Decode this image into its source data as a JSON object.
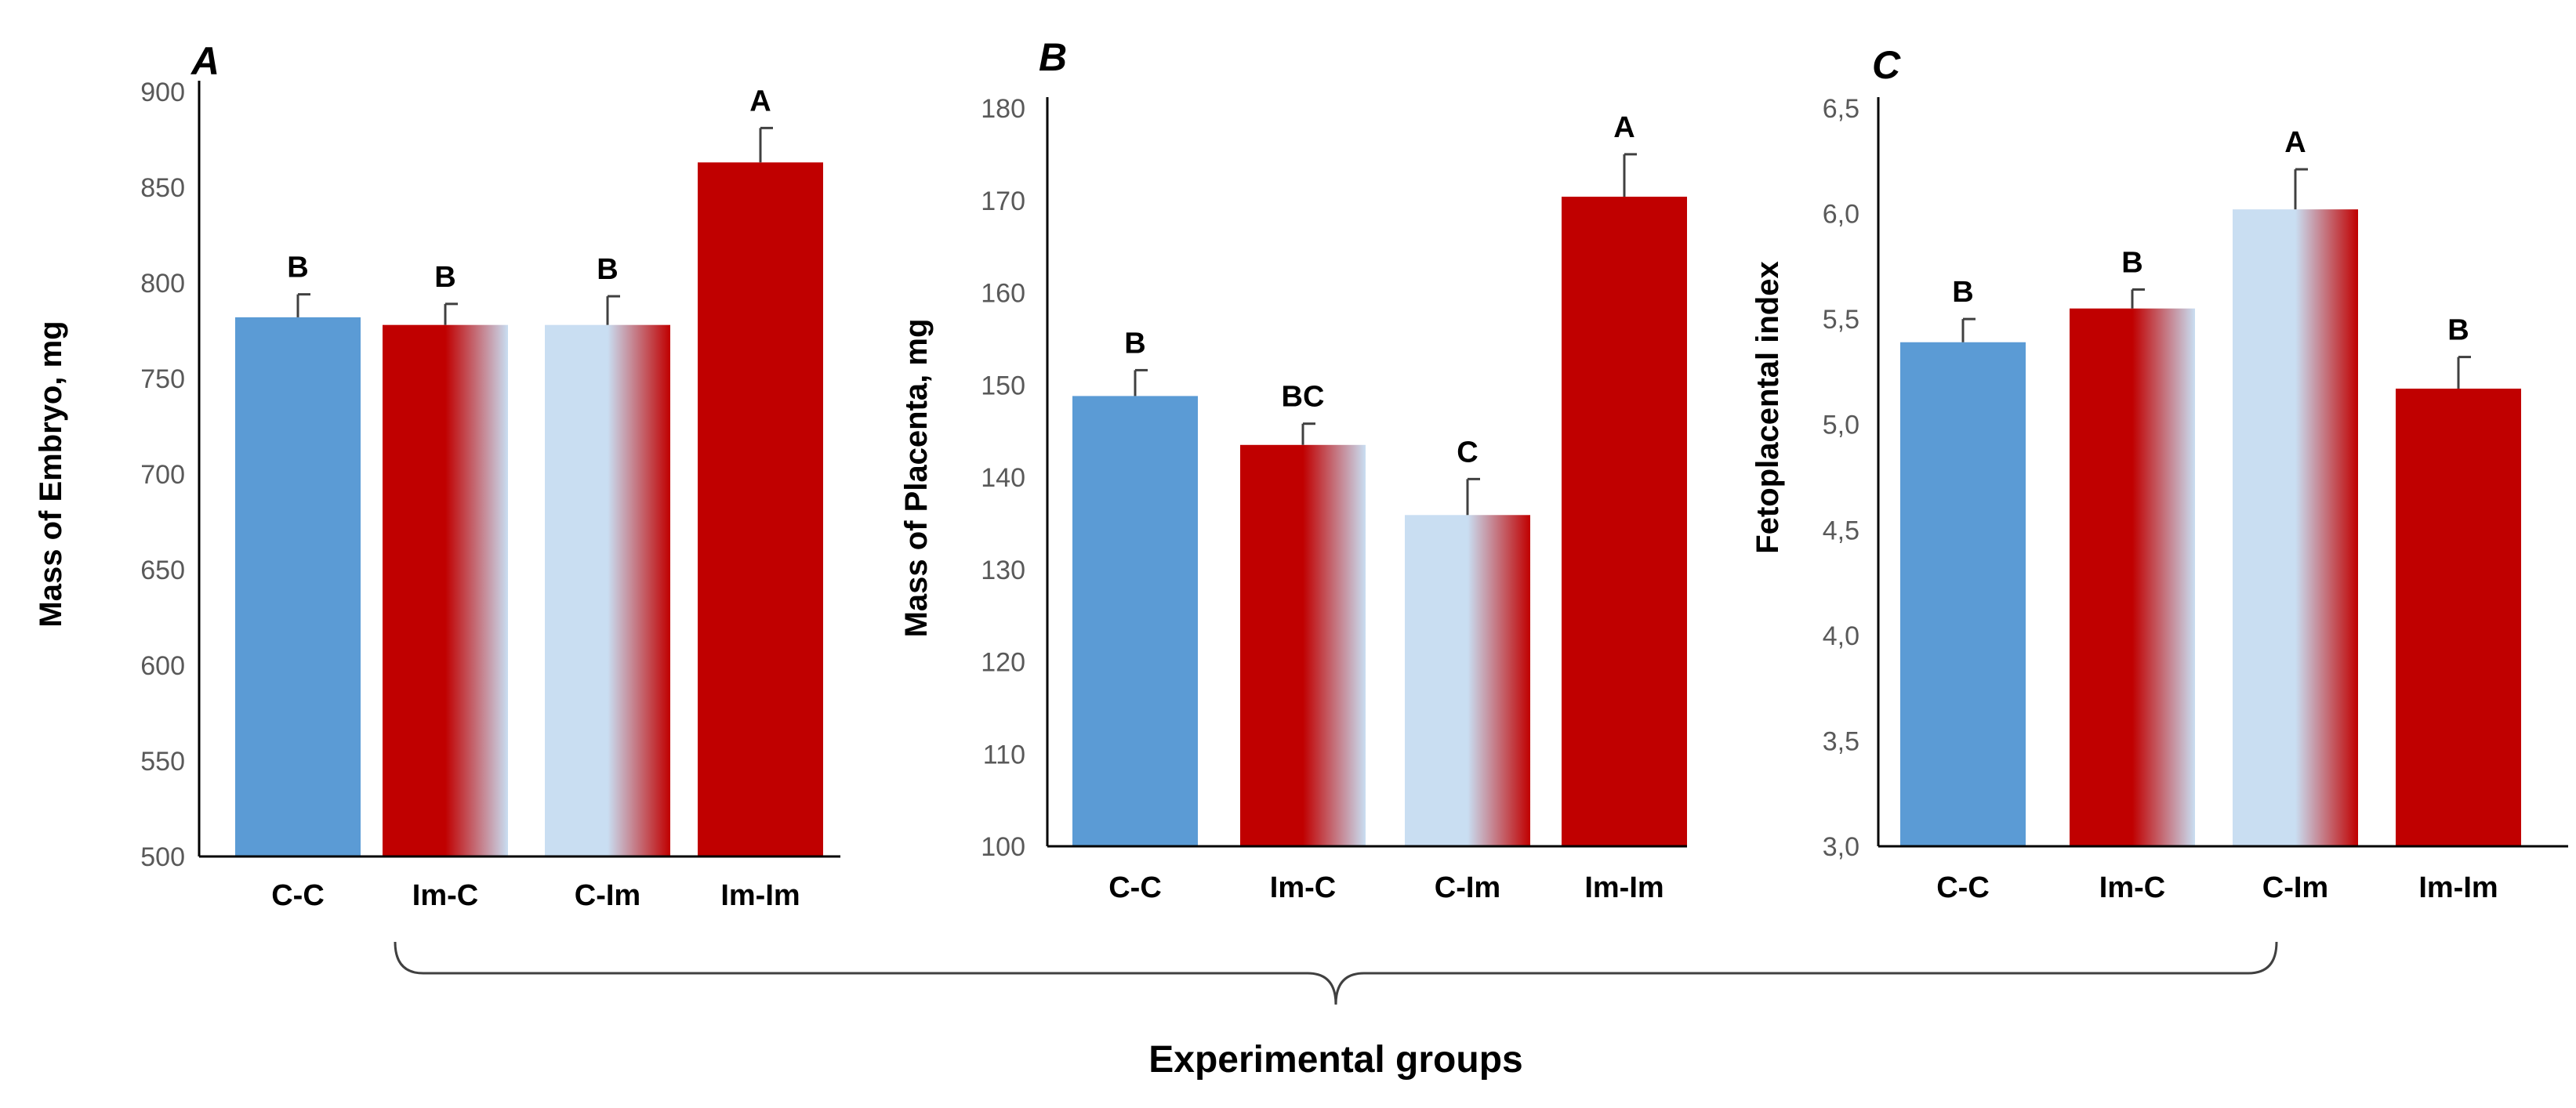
{
  "chart_data": [
    {
      "panel": "A",
      "type": "bar",
      "categories": [
        "C-C",
        "Im-C",
        "C-Im",
        "Im-Im"
      ],
      "values": [
        782,
        778,
        778,
        863
      ],
      "errors": [
        12,
        11,
        15,
        18
      ],
      "significance": [
        "B",
        "B",
        "B",
        "A"
      ],
      "ylabel": "Mass of Embryo, mg",
      "ylim": [
        500,
        900
      ],
      "yticks": [
        "500",
        "550",
        "600",
        "650",
        "700",
        "750",
        "800",
        "850",
        "900"
      ],
      "ytick_values": [
        500,
        550,
        600,
        650,
        700,
        750,
        800,
        850,
        900
      ]
    },
    {
      "panel": "B",
      "type": "bar",
      "categories": [
        "C-C",
        "Im-C",
        "C-Im",
        "Im-Im"
      ],
      "values": [
        148.8,
        143.5,
        135.9,
        170.4
      ],
      "errors": [
        2.8,
        2.3,
        3.9,
        4.6
      ],
      "significance": [
        "B",
        "BC",
        "C",
        "A"
      ],
      "ylabel": "Mass of Placenta, mg",
      "ylim": [
        100,
        180
      ],
      "yticks": [
        "100",
        "110",
        "120",
        "130",
        "140",
        "150",
        "160",
        "170",
        "180"
      ],
      "ytick_values": [
        100,
        110,
        120,
        130,
        140,
        150,
        160,
        170,
        180
      ]
    },
    {
      "panel": "C",
      "type": "bar",
      "categories": [
        "C-C",
        "Im-C",
        "C-Im",
        "Im-Im"
      ],
      "values": [
        5.39,
        5.55,
        6.02,
        5.17
      ],
      "errors": [
        0.11,
        0.09,
        0.19,
        0.15
      ],
      "significance": [
        "B",
        "B",
        "A",
        "B"
      ],
      "ylabel": "Fetoplacental index",
      "ylim": [
        3.0,
        6.5
      ],
      "yticks": [
        "3,0",
        "3,5",
        "4,0",
        "4,5",
        "5,0",
        "5,5",
        "6,0",
        "6,5"
      ],
      "ytick_values": [
        3.0,
        3.5,
        4.0,
        4.5,
        5.0,
        5.5,
        6.0,
        6.5
      ]
    }
  ],
  "bar_styles": [
    "solid-blue",
    "red-to-light-blue",
    "light-blue-to-red",
    "solid-red"
  ],
  "colors": {
    "blue": "#5b9bd5",
    "red": "#c00000",
    "light_blue": "#c9def2",
    "axis": "#000000",
    "tick_text": "#595959"
  },
  "xlabel": "Experimental groups"
}
